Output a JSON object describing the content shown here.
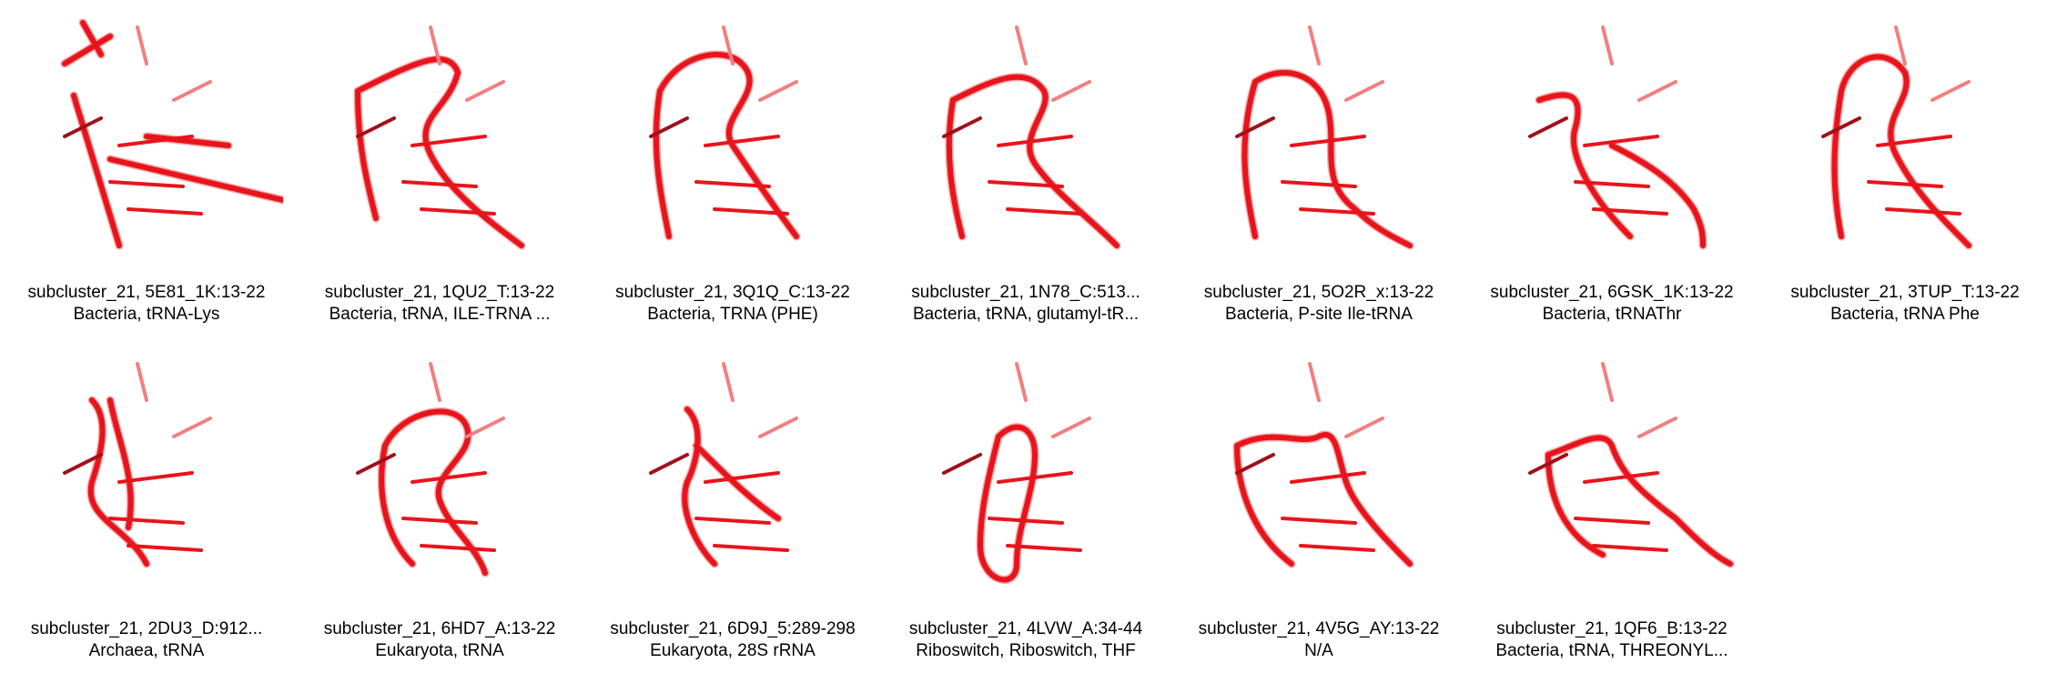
{
  "items": [
    {
      "line1": "subcluster_21, 5E81_1K:13-22",
      "line2": "Bacteria, tRNA-Lys"
    },
    {
      "line1": "subcluster_21, 1QU2_T:13-22",
      "line2": "Bacteria, tRNA, ILE-TRNA ..."
    },
    {
      "line1": "subcluster_21, 3Q1Q_C:13-22",
      "line2": "Bacteria, TRNA (PHE)"
    },
    {
      "line1": "subcluster_21, 1N78_C:513...",
      "line2": "Bacteria, tRNA, glutamyl-tR..."
    },
    {
      "line1": "subcluster_21, 5O2R_x:13-22",
      "line2": "Bacteria, P-site Ile-tRNA"
    },
    {
      "line1": "subcluster_21, 6GSK_1K:13-22",
      "line2": "Bacteria, tRNAThr"
    },
    {
      "line1": "subcluster_21, 3TUP_T:13-22",
      "line2": "Bacteria, tRNA Phe"
    },
    {
      "line1": "subcluster_21, 2DU3_D:912...",
      "line2": "Archaea, tRNA"
    },
    {
      "line1": "subcluster_21, 6HD7_A:13-22",
      "line2": "Eukaryota, tRNA"
    },
    {
      "line1": "subcluster_21, 6D9J_5:289-298",
      "line2": "Eukaryota, 28S rRNA"
    },
    {
      "line1": "subcluster_21, 4LVW_A:34-44",
      "line2": "Riboswitch, Riboswitch, THF"
    },
    {
      "line1": "subcluster_21, 4V5G_AY:13-22",
      "line2": "N/A"
    },
    {
      "line1": "subcluster_21, 1QF6_B:13-22",
      "line2": "Bacteria, tRNA, THREONYL..."
    }
  ],
  "colors": {
    "strand_main": "#e8141c",
    "strand_light": "#f08080",
    "strand_dark": "#a0101a"
  }
}
